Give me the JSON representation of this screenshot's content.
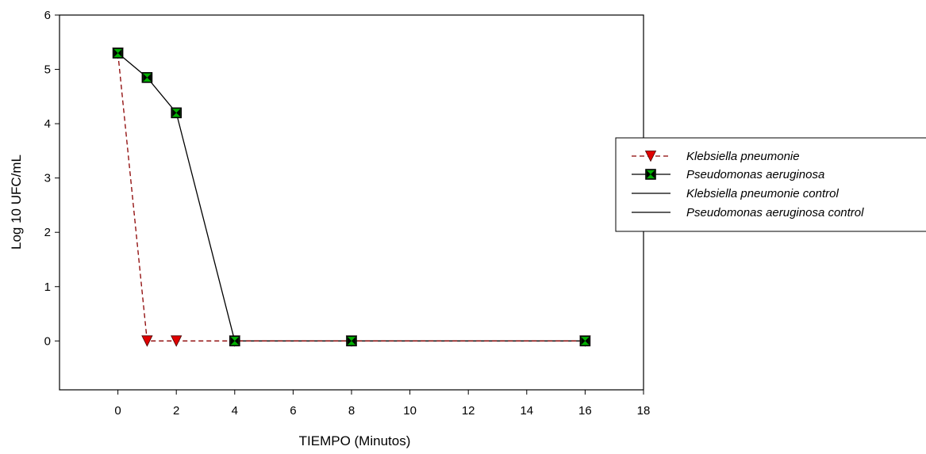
{
  "chart_data": {
    "type": "line",
    "title": "",
    "xlabel": "TIEMPO (Minutos)",
    "ylabel": "Log 10 UFC/mL",
    "xlim": [
      -2,
      18
    ],
    "ylim": [
      -0.9,
      6
    ],
    "xticks": [
      0,
      2,
      4,
      6,
      8,
      10,
      12,
      14,
      16,
      18
    ],
    "yticks": [
      0,
      1,
      2,
      3,
      4,
      5,
      6
    ],
    "grid": false,
    "legend_position": "right",
    "series": [
      {
        "name": "Klebsiella pneumonie",
        "color": "#e00000",
        "line_color": "#8b0000",
        "line_style": "dashed",
        "marker": "triangle-down",
        "x": [
          0,
          1,
          2,
          4,
          8,
          16
        ],
        "y": [
          5.3,
          0,
          0,
          0,
          0,
          0
        ]
      },
      {
        "name": "Pseudomonas aeruginosa",
        "color": "#00b000",
        "line_color": "#000000",
        "line_style": "solid",
        "marker": "square-x",
        "x": [
          0,
          1,
          2,
          4,
          8,
          16
        ],
        "y": [
          5.3,
          4.85,
          4.2,
          0,
          0,
          0
        ]
      },
      {
        "name": "Klebsiella pneumonie control",
        "line_color": "#000000",
        "line_style": "solid",
        "marker": "none",
        "x": [],
        "y": []
      },
      {
        "name": "Pseudomonas aeruginosa control",
        "line_color": "#000000",
        "line_style": "solid",
        "marker": "none",
        "x": [],
        "y": []
      }
    ]
  }
}
